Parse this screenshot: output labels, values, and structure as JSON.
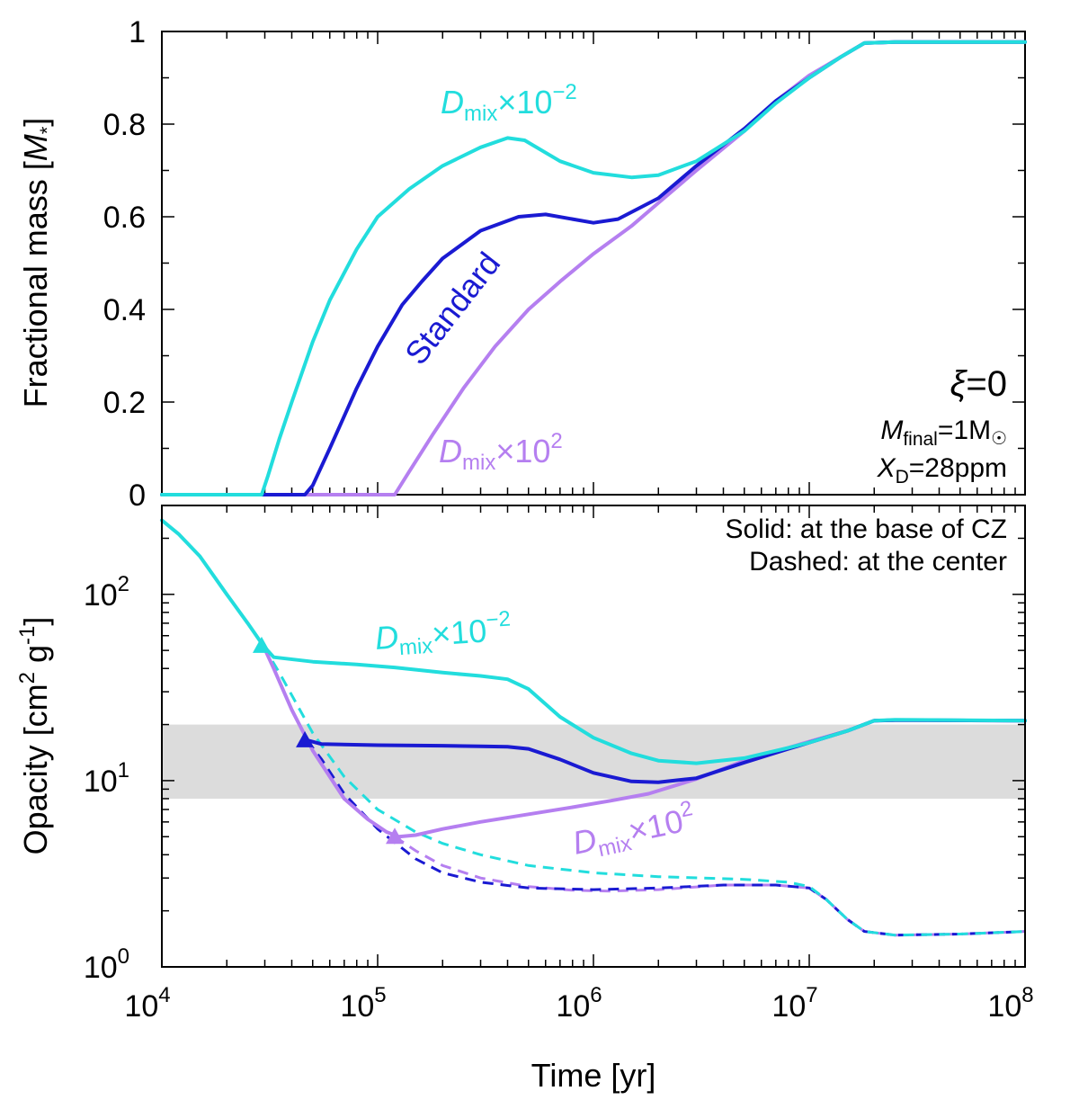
{
  "colors": {
    "cyan": "#22dddd",
    "blue": "#1a1ad2",
    "purple": "#b57ff0",
    "shade": "#dcdcdc"
  },
  "chart_data": [
    {
      "type": "line",
      "panel": "top",
      "title": "",
      "xlabel": "Time [yr]",
      "ylabel": "Fractional mass [M*]",
      "xscale": "log",
      "xlim": [
        10000,
        100000000
      ],
      "ylim": [
        0,
        1
      ],
      "yticks": [
        "0",
        "0.2",
        "0.4",
        "0.6",
        "0.8",
        "1"
      ],
      "series": [
        {
          "name": "Standard",
          "color": "#1a1ad2",
          "label_text": "Standard",
          "points": [
            [
              10000,
              0
            ],
            [
              46000,
              0
            ],
            [
              50000,
              0.02
            ],
            [
              60000,
              0.1
            ],
            [
              80000,
              0.23
            ],
            [
              100000,
              0.32
            ],
            [
              130000,
              0.41
            ],
            [
              160000,
              0.46
            ],
            [
              200000,
              0.51
            ],
            [
              300000,
              0.57
            ],
            [
              450000,
              0.6
            ],
            [
              600000,
              0.605
            ],
            [
              800000,
              0.595
            ],
            [
              1000000,
              0.587
            ],
            [
              1300000,
              0.595
            ],
            [
              2000000,
              0.64
            ],
            [
              3000000,
              0.71
            ],
            [
              5000000,
              0.79
            ],
            [
              7000000,
              0.85
            ],
            [
              10000000,
              0.9
            ],
            [
              14000000,
              0.945
            ],
            [
              18000000,
              0.975
            ],
            [
              25000000,
              0.977
            ],
            [
              100000000,
              0.977
            ]
          ]
        },
        {
          "name": "Dmix x10^-2",
          "color": "#22dddd",
          "label_main": "D",
          "label_sub": "mix",
          "label_times": "×10",
          "label_exp": "−2",
          "points": [
            [
              10000,
              0
            ],
            [
              29000,
              0
            ],
            [
              31000,
              0.04
            ],
            [
              35000,
              0.12
            ],
            [
              40000,
              0.2
            ],
            [
              50000,
              0.33
            ],
            [
              60000,
              0.42
            ],
            [
              80000,
              0.53
            ],
            [
              100000,
              0.6
            ],
            [
              140000,
              0.66
            ],
            [
              200000,
              0.71
            ],
            [
              300000,
              0.75
            ],
            [
              400000,
              0.77
            ],
            [
              480000,
              0.765
            ],
            [
              700000,
              0.72
            ],
            [
              1000000,
              0.695
            ],
            [
              1500000,
              0.685
            ],
            [
              2000000,
              0.69
            ],
            [
              3000000,
              0.72
            ],
            [
              5000000,
              0.785
            ],
            [
              7000000,
              0.845
            ],
            [
              10000000,
              0.9
            ],
            [
              14000000,
              0.945
            ],
            [
              18000000,
              0.975
            ],
            [
              25000000,
              0.977
            ],
            [
              100000000,
              0.977
            ]
          ]
        },
        {
          "name": "Dmix x10^2",
          "color": "#b57ff0",
          "label_main": "D",
          "label_sub": "mix",
          "label_times": "×10",
          "label_exp": "2",
          "points": [
            [
              10000,
              0
            ],
            [
              120000,
              0
            ],
            [
              140000,
              0.05
            ],
            [
              180000,
              0.13
            ],
            [
              250000,
              0.23
            ],
            [
              350000,
              0.32
            ],
            [
              500000,
              0.4
            ],
            [
              700000,
              0.46
            ],
            [
              1000000,
              0.52
            ],
            [
              1500000,
              0.58
            ],
            [
              2000000,
              0.63
            ],
            [
              3000000,
              0.7
            ],
            [
              5000000,
              0.785
            ],
            [
              7000000,
              0.85
            ],
            [
              10000000,
              0.905
            ],
            [
              14000000,
              0.945
            ],
            [
              18000000,
              0.975
            ],
            [
              25000000,
              0.977
            ],
            [
              100000000,
              0.977
            ]
          ]
        }
      ],
      "annotations": {
        "xi": "ξ",
        "xi_value": "=0",
        "mfinal_main": "M",
        "mfinal_sub": "final",
        "mfinal_value": "=1M",
        "mfinal_sun": "☉",
        "xd_main": "X",
        "xd_sub": "D",
        "xd_value": "=28ppm"
      }
    },
    {
      "type": "line",
      "panel": "bottom",
      "title": "",
      "xlabel": "Time [yr]",
      "ylabel": "Opacity [cm^2 g^-1]",
      "xscale": "log",
      "yscale": "log",
      "xlim": [
        10000,
        100000000
      ],
      "ylim": [
        1,
        300
      ],
      "xticks": [
        {
          "base": "10",
          "exp": "4"
        },
        {
          "base": "10",
          "exp": "5"
        },
        {
          "base": "10",
          "exp": "6"
        },
        {
          "base": "10",
          "exp": "7"
        },
        {
          "base": "10",
          "exp": "8"
        }
      ],
      "yticks": [
        {
          "base": "10",
          "exp": "0"
        },
        {
          "base": "10",
          "exp": "1"
        },
        {
          "base": "10",
          "exp": "2"
        }
      ],
      "shaded_band": [
        8,
        20
      ],
      "legend_lines": [
        "Solid: at the base of CZ",
        "Dashed: at the center"
      ],
      "ylabel_parts": {
        "pre": "Opacity [cm",
        "exp1": "2",
        "mid": " g",
        "exp2": "-1",
        "post": "]"
      },
      "series": [
        {
          "name": "Standard solid",
          "color": "#1a1ad2",
          "style": "solid",
          "points": [
            [
              47000,
              16.5
            ],
            [
              55000,
              15.7
            ],
            [
              100000,
              15.5
            ],
            [
              200000,
              15.4
            ],
            [
              300000,
              15.3
            ],
            [
              400000,
              15.2
            ],
            [
              500000,
              14.8
            ],
            [
              700000,
              13
            ],
            [
              1000000,
              11
            ],
            [
              1500000,
              9.9
            ],
            [
              2000000,
              9.8
            ],
            [
              3000000,
              10.3
            ],
            [
              5000000,
              12.5
            ],
            [
              8000000,
              14.8
            ],
            [
              10000000,
              16
            ],
            [
              15000000,
              18.5
            ],
            [
              20000000,
              21
            ],
            [
              25000000,
              21.1
            ],
            [
              100000000,
              21
            ]
          ]
        },
        {
          "name": "Dmix x10^-2 solid",
          "color": "#22dddd",
          "style": "solid",
          "points": [
            [
              10000,
              250
            ],
            [
              12000,
              210
            ],
            [
              15000,
              160
            ],
            [
              20000,
              100
            ],
            [
              25000,
              70
            ],
            [
              29500,
              53
            ],
            [
              33000,
              46
            ],
            [
              50000,
              43.5
            ],
            [
              80000,
              42
            ],
            [
              120000,
              40.5
            ],
            [
              200000,
              38
            ],
            [
              300000,
              36.5
            ],
            [
              400000,
              35
            ],
            [
              500000,
              31
            ],
            [
              700000,
              22
            ],
            [
              1000000,
              17
            ],
            [
              1500000,
              14
            ],
            [
              2000000,
              12.8
            ],
            [
              3000000,
              12.4
            ],
            [
              5000000,
              13.2
            ],
            [
              8000000,
              15
            ],
            [
              10000000,
              16
            ],
            [
              15000000,
              18.5
            ],
            [
              20000000,
              21
            ],
            [
              25000000,
              21.2
            ],
            [
              100000000,
              21
            ]
          ]
        },
        {
          "name": "Dmix x10^2 solid",
          "color": "#b57ff0",
          "style": "solid",
          "points": [
            [
              29500,
              53
            ],
            [
              33000,
              40
            ],
            [
              40000,
              24
            ],
            [
              50000,
              14.5
            ],
            [
              70000,
              8
            ],
            [
              90000,
              6.2
            ],
            [
              110000,
              5.3
            ],
            [
              125000,
              5
            ],
            [
              150000,
              5.1
            ],
            [
              200000,
              5.5
            ],
            [
              300000,
              6
            ],
            [
              500000,
              6.6
            ],
            [
              800000,
              7.2
            ],
            [
              1200000,
              7.8
            ],
            [
              1800000,
              8.5
            ],
            [
              3000000,
              10.2
            ],
            [
              5000000,
              12.8
            ],
            [
              8000000,
              15
            ],
            [
              10000000,
              16.2
            ],
            [
              15000000,
              18.5
            ],
            [
              20000000,
              21
            ],
            [
              25000000,
              21.1
            ],
            [
              100000000,
              21
            ]
          ]
        },
        {
          "name": "Dmix x10^-2 dashed",
          "color": "#22dddd",
          "style": "dashed",
          "points": [
            [
              29500,
              53
            ],
            [
              35000,
              38
            ],
            [
              50000,
              18
            ],
            [
              70000,
              10.5
            ],
            [
              100000,
              7
            ],
            [
              150000,
              5.3
            ],
            [
              200000,
              4.6
            ],
            [
              300000,
              4
            ],
            [
              500000,
              3.5
            ],
            [
              1000000,
              3.2
            ],
            [
              2000000,
              3.05
            ],
            [
              5000000,
              2.95
            ],
            [
              8000000,
              2.85
            ],
            [
              10000000,
              2.7
            ],
            [
              12000000,
              2.3
            ],
            [
              15000000,
              1.8
            ],
            [
              18000000,
              1.55
            ],
            [
              25000000,
              1.48
            ],
            [
              50000000,
              1.5
            ],
            [
              100000000,
              1.55
            ]
          ]
        },
        {
          "name": "Standard dashed",
          "color": "#1a1ad2",
          "style": "dashed",
          "points": [
            [
              47000,
              16.5
            ],
            [
              55000,
              13
            ],
            [
              70000,
              8.5
            ],
            [
              100000,
              5.5
            ],
            [
              150000,
              3.8
            ],
            [
              200000,
              3.2
            ],
            [
              300000,
              2.85
            ],
            [
              500000,
              2.65
            ],
            [
              1000000,
              2.6
            ],
            [
              2000000,
              2.65
            ],
            [
              4000000,
              2.75
            ],
            [
              7000000,
              2.75
            ],
            [
              10000000,
              2.65
            ],
            [
              12000000,
              2.3
            ],
            [
              15000000,
              1.8
            ],
            [
              18000000,
              1.55
            ],
            [
              25000000,
              1.48
            ],
            [
              50000000,
              1.5
            ],
            [
              100000000,
              1.55
            ]
          ]
        },
        {
          "name": "Dmix x10^2 dashed",
          "color": "#b57ff0",
          "style": "dashed",
          "points": [
            [
              120000,
              5
            ],
            [
              150000,
              4.2
            ],
            [
              200000,
              3.5
            ],
            [
              300000,
              3
            ],
            [
              500000,
              2.7
            ],
            [
              800000,
              2.58
            ],
            [
              1200000,
              2.55
            ],
            [
              2000000,
              2.6
            ],
            [
              4000000,
              2.75
            ],
            [
              7000000,
              2.75
            ],
            [
              10000000,
              2.65
            ],
            [
              12000000,
              2.3
            ],
            [
              15000000,
              1.8
            ],
            [
              18000000,
              1.55
            ],
            [
              25000000,
              1.48
            ],
            [
              50000000,
              1.5
            ],
            [
              100000000,
              1.55
            ]
          ]
        }
      ],
      "markers": [
        {
          "series": "Dmix x10^-2",
          "color": "#22dddd",
          "t": 29000,
          "value": 53
        },
        {
          "series": "Standard",
          "color": "#1a1ad2",
          "t": 46000,
          "value": 16.5
        },
        {
          "series": "Dmix x10^2",
          "color": "#b57ff0",
          "t": 120000,
          "value": 5
        }
      ]
    }
  ]
}
